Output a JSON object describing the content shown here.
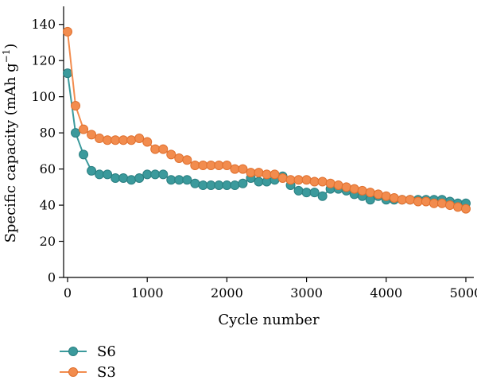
{
  "chart_data": {
    "type": "line",
    "xlabel": "Cycle number",
    "ylabel_main": "Specific capacity (mAh g",
    "ylabel_sup": "−1",
    "ylabel_close": ")",
    "xlim": [
      -50,
      5100
    ],
    "ylim": [
      0,
      150
    ],
    "xticks": [
      0,
      1000,
      2000,
      3000,
      4000,
      5000
    ],
    "yticks": [
      0,
      20,
      40,
      60,
      80,
      100,
      120,
      140
    ],
    "legend_placement": "bottom-left",
    "series": [
      {
        "name": "S6",
        "color": "#3b9a9c",
        "x": [
          0,
          100,
          200,
          300,
          400,
          500,
          600,
          700,
          800,
          900,
          1000,
          1100,
          1200,
          1300,
          1400,
          1500,
          1600,
          1700,
          1800,
          1900,
          2000,
          2100,
          2200,
          2300,
          2400,
          2500,
          2600,
          2700,
          2800,
          2900,
          3000,
          3100,
          3200,
          3300,
          3400,
          3500,
          3600,
          3700,
          3800,
          3900,
          4000,
          4100,
          4200,
          4300,
          4400,
          4500,
          4600,
          4700,
          4800,
          4900,
          5000
        ],
        "values": [
          113,
          80,
          68,
          59,
          57,
          57,
          55,
          55,
          54,
          55,
          57,
          57,
          57,
          54,
          54,
          54,
          52,
          51,
          51,
          51,
          51,
          51,
          52,
          55,
          53,
          53,
          54,
          56,
          51,
          48,
          47,
          47,
          45,
          49,
          49,
          48,
          46,
          45,
          43,
          45,
          43,
          43,
          43,
          43,
          43,
          43,
          43,
          43,
          42,
          41,
          41
        ]
      },
      {
        "name": "S3",
        "color": "#f28c4e",
        "x": [
          0,
          100,
          200,
          300,
          400,
          500,
          600,
          700,
          800,
          900,
          1000,
          1100,
          1200,
          1300,
          1400,
          1500,
          1600,
          1700,
          1800,
          1900,
          2000,
          2100,
          2200,
          2300,
          2400,
          2500,
          2600,
          2700,
          2800,
          2900,
          3000,
          3100,
          3200,
          3300,
          3400,
          3500,
          3600,
          3700,
          3800,
          3900,
          4000,
          4100,
          4200,
          4300,
          4400,
          4500,
          4600,
          4700,
          4800,
          4900,
          5000
        ],
        "values": [
          136,
          95,
          82,
          79,
          77,
          76,
          76,
          76,
          76,
          77,
          75,
          71,
          71,
          68,
          66,
          65,
          62,
          62,
          62,
          62,
          62,
          60,
          60,
          58,
          58,
          57,
          57,
          55,
          54,
          54,
          54,
          53,
          53,
          52,
          51,
          50,
          49,
          48,
          47,
          46,
          45,
          44,
          43,
          43,
          42,
          42,
          41,
          41,
          40,
          39,
          38
        ]
      }
    ]
  }
}
